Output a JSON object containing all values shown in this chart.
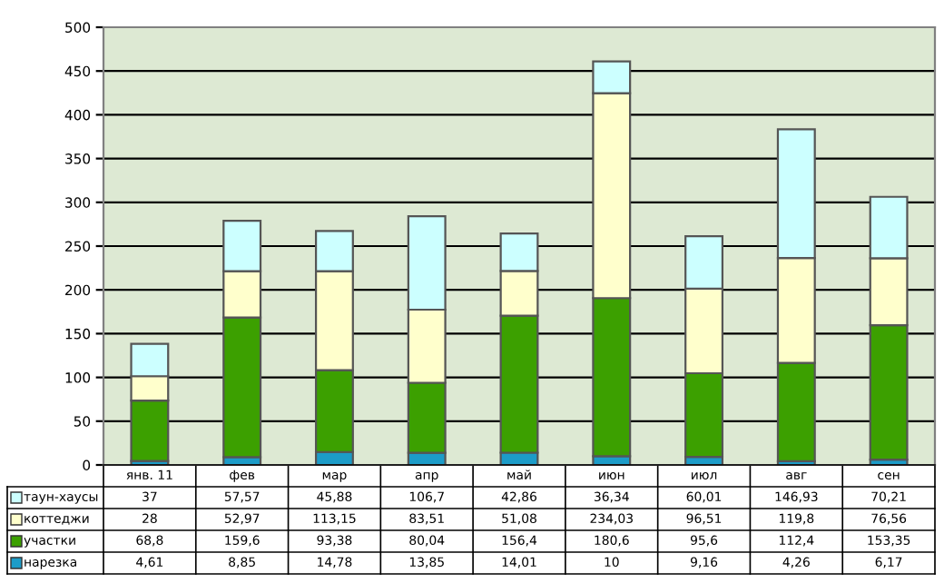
{
  "chart_data": {
    "type": "bar",
    "stacked": true,
    "categories": [
      "янв. 11",
      "фев",
      "мар",
      "апр",
      "май",
      "июн",
      "июл",
      "авг",
      "сен"
    ],
    "series": [
      {
        "name": "нарезка",
        "color": "#1c9cc8",
        "values": [
          4.61,
          8.85,
          14.78,
          13.85,
          14.01,
          10,
          9.16,
          4.26,
          6.17
        ],
        "value_labels": [
          "4,61",
          "8,85",
          "14,78",
          "13,85",
          "14,01",
          "10",
          "9,16",
          "4,26",
          "6,17"
        ]
      },
      {
        "name": "участки",
        "color": "#3ca000",
        "values": [
          68.8,
          159.6,
          93.38,
          80.04,
          156.4,
          180.6,
          95.6,
          112.4,
          153.35
        ],
        "value_labels": [
          "68,8",
          "159,6",
          "93,38",
          "80,04",
          "156,4",
          "180,6",
          "95,6",
          "112,4",
          "153,35"
        ]
      },
      {
        "name": "коттеджи",
        "color": "#ffffcc",
        "values": [
          28,
          52.97,
          113.15,
          83.51,
          51.08,
          234.03,
          96.51,
          119.8,
          76.56
        ],
        "value_labels": [
          "28",
          "52,97",
          "113,15",
          "83,51",
          "51,08",
          "234,03",
          "96,51",
          "119,8",
          "76,56"
        ]
      },
      {
        "name": "таун-хаусы",
        "color": "#ccffff",
        "values": [
          37,
          57.57,
          45.88,
          106.7,
          42.86,
          36.34,
          60.01,
          146.93,
          70.21
        ],
        "value_labels": [
          "37",
          "57,57",
          "45,88",
          "106,7",
          "42,86",
          "36,34",
          "60,01",
          "146,93",
          "70,21"
        ]
      }
    ],
    "ylim": [
      0,
      500
    ],
    "yticks": [
      0,
      50,
      100,
      150,
      200,
      250,
      300,
      350,
      400,
      450,
      500
    ],
    "grid": "y",
    "legend": "bottom"
  }
}
